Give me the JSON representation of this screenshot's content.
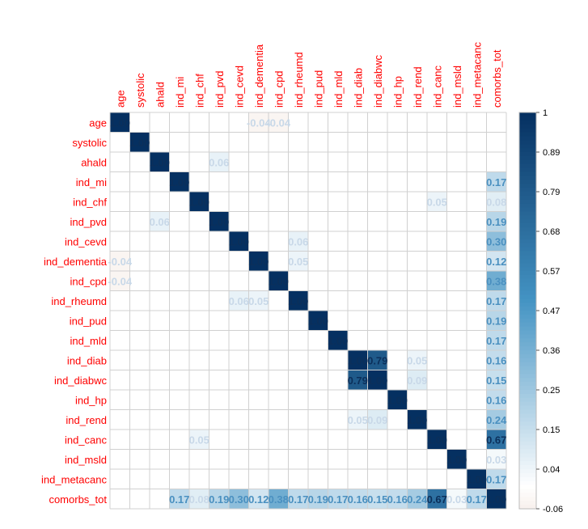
{
  "chart_data": {
    "type": "heatmap",
    "title": "",
    "variables": [
      "age",
      "systolic",
      "ahald",
      "ind_mi",
      "ind_chf",
      "ind_pvd",
      "ind_cevd",
      "ind_dementia",
      "ind_cpd",
      "ind_rheumd",
      "ind_pud",
      "ind_mld",
      "ind_diab",
      "ind_diabwc",
      "ind_hp",
      "ind_rend",
      "ind_canc",
      "ind_msld",
      "ind_metacanc",
      "comorbs_tot"
    ],
    "cells": [
      {
        "r": 0,
        "c": 0,
        "v": 1.0
      },
      {
        "r": 1,
        "c": 1,
        "v": 1.0
      },
      {
        "r": 2,
        "c": 2,
        "v": 1.0
      },
      {
        "r": 3,
        "c": 3,
        "v": 1.0
      },
      {
        "r": 4,
        "c": 4,
        "v": 1.0
      },
      {
        "r": 5,
        "c": 5,
        "v": 1.0
      },
      {
        "r": 6,
        "c": 6,
        "v": 1.0
      },
      {
        "r": 7,
        "c": 7,
        "v": 1.0
      },
      {
        "r": 8,
        "c": 8,
        "v": 1.0
      },
      {
        "r": 9,
        "c": 9,
        "v": 1.0
      },
      {
        "r": 10,
        "c": 10,
        "v": 1.0
      },
      {
        "r": 11,
        "c": 11,
        "v": 1.0
      },
      {
        "r": 12,
        "c": 12,
        "v": 1.0
      },
      {
        "r": 13,
        "c": 13,
        "v": 1.0
      },
      {
        "r": 14,
        "c": 14,
        "v": 1.0
      },
      {
        "r": 15,
        "c": 15,
        "v": 1.0
      },
      {
        "r": 16,
        "c": 16,
        "v": 1.0
      },
      {
        "r": 17,
        "c": 17,
        "v": 1.0
      },
      {
        "r": 18,
        "c": 18,
        "v": 1.0
      },
      {
        "r": 19,
        "c": 19,
        "v": 1.0
      },
      {
        "r": 12,
        "c": 13,
        "v": 0.79
      },
      {
        "r": 13,
        "c": 12,
        "v": 0.79
      },
      {
        "r": 3,
        "c": 19,
        "v": 0.17
      },
      {
        "r": 19,
        "c": 3,
        "v": 0.17
      },
      {
        "r": 4,
        "c": 19,
        "v": 0.08
      },
      {
        "r": 19,
        "c": 4,
        "v": 0.08
      },
      {
        "r": 5,
        "c": 19,
        "v": 0.19
      },
      {
        "r": 19,
        "c": 5,
        "v": 0.19
      },
      {
        "r": 6,
        "c": 19,
        "v": 0.3
      },
      {
        "r": 19,
        "c": 6,
        "v": 0.3
      },
      {
        "r": 7,
        "c": 19,
        "v": 0.12
      },
      {
        "r": 19,
        "c": 7,
        "v": 0.12
      },
      {
        "r": 8,
        "c": 19,
        "v": 0.38
      },
      {
        "r": 19,
        "c": 8,
        "v": 0.38
      },
      {
        "r": 9,
        "c": 19,
        "v": 0.17
      },
      {
        "r": 19,
        "c": 9,
        "v": 0.17
      },
      {
        "r": 10,
        "c": 19,
        "v": 0.19
      },
      {
        "r": 19,
        "c": 10,
        "v": 0.19
      },
      {
        "r": 11,
        "c": 19,
        "v": 0.17
      },
      {
        "r": 19,
        "c": 11,
        "v": 0.17
      },
      {
        "r": 12,
        "c": 19,
        "v": 0.16
      },
      {
        "r": 19,
        "c": 12,
        "v": 0.16
      },
      {
        "r": 13,
        "c": 19,
        "v": 0.15
      },
      {
        "r": 19,
        "c": 13,
        "v": 0.15
      },
      {
        "r": 14,
        "c": 19,
        "v": 0.16
      },
      {
        "r": 19,
        "c": 14,
        "v": 0.16
      },
      {
        "r": 15,
        "c": 19,
        "v": 0.24
      },
      {
        "r": 19,
        "c": 15,
        "v": 0.24
      },
      {
        "r": 16,
        "c": 19,
        "v": 0.67
      },
      {
        "r": 19,
        "c": 16,
        "v": 0.67
      },
      {
        "r": 18,
        "c": 19,
        "v": 0.17
      },
      {
        "r": 19,
        "c": 18,
        "v": 0.17
      },
      {
        "r": 17,
        "c": 19,
        "v": 0.03
      },
      {
        "r": 19,
        "c": 17,
        "v": 0.03
      },
      {
        "r": 0,
        "c": 7,
        "v": -0.04
      },
      {
        "r": 7,
        "c": 0,
        "v": -0.04
      },
      {
        "r": 0,
        "c": 8,
        "v": -0.04
      },
      {
        "r": 8,
        "c": 0,
        "v": -0.04
      },
      {
        "r": 5,
        "c": 2,
        "v": 0.06
      },
      {
        "r": 2,
        "c": 5,
        "v": 0.06
      },
      {
        "r": 9,
        "c": 6,
        "v": 0.06
      },
      {
        "r": 6,
        "c": 9,
        "v": 0.06
      },
      {
        "r": 9,
        "c": 7,
        "v": 0.05
      },
      {
        "r": 7,
        "c": 9,
        "v": 0.05
      },
      {
        "r": 12,
        "c": 15,
        "v": 0.05
      },
      {
        "r": 15,
        "c": 12,
        "v": 0.05
      },
      {
        "r": 13,
        "c": 15,
        "v": 0.09
      },
      {
        "r": 15,
        "c": 13,
        "v": 0.09
      },
      {
        "r": 16,
        "c": 4,
        "v": 0.05
      },
      {
        "r": 4,
        "c": 16,
        "v": 0.05
      }
    ],
    "color_scale": {
      "min": -0.06,
      "max": 1,
      "low_color": "#f7f0ec",
      "mid_color": "#ffffff",
      "high_color": "#053061"
    },
    "colorbar_ticks": [
      "1",
      "0.89",
      "0.79",
      "0.68",
      "0.57",
      "0.47",
      "0.36",
      "0.25",
      "0.15",
      "0.04",
      "-0.06"
    ],
    "label_color": "#ff0000",
    "grid": true,
    "legend": "right"
  }
}
